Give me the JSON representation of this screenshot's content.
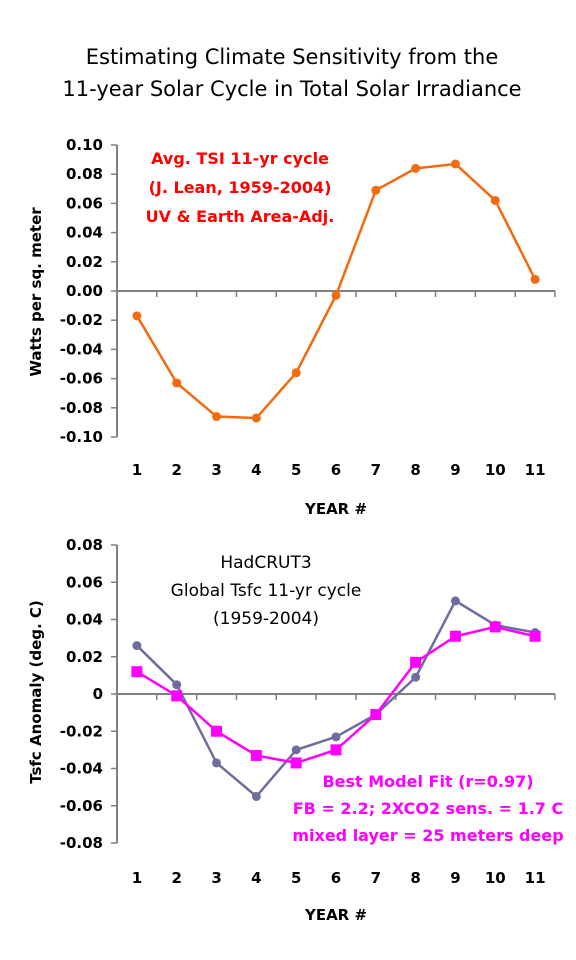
{
  "title": {
    "line1": "Estimating Climate Sensitivity from the",
    "line2": "11-year Solar Cycle in Total Solar Irradiance"
  },
  "chart_data": [
    {
      "type": "line",
      "id": "tsi",
      "xlabel": "YEAR #",
      "ylabel": "Watts per sq. meter",
      "x": [
        1,
        2,
        3,
        4,
        5,
        6,
        7,
        8,
        9,
        10,
        11
      ],
      "xlim": [
        0.5,
        11.5
      ],
      "ylim": [
        -0.1,
        0.1
      ],
      "yticks": [
        0.1,
        0.08,
        0.06,
        0.04,
        0.02,
        0.0,
        -0.02,
        -0.04,
        -0.06,
        -0.08,
        -0.1
      ],
      "ytick_labels": [
        "0.10",
        "0.08",
        "0.06",
        "0.04",
        "0.02",
        "0.00",
        "-0.02",
        "-0.04",
        "-0.06",
        "-0.08",
        "-0.10"
      ],
      "xtick_labels": [
        "1",
        "2",
        "3",
        "4",
        "5",
        "6",
        "7",
        "8",
        "9",
        "10",
        "11"
      ],
      "series": [
        {
          "values": [
            -0.017,
            -0.063,
            -0.086,
            -0.087,
            -0.056,
            -0.003,
            0.069,
            0.084,
            0.087,
            0.062,
            0.008
          ],
          "color": "#F26B0F",
          "marker": "circle"
        }
      ],
      "annotation": {
        "lines": [
          "Avg. TSI 11-yr cycle",
          "(J. Lean, 1959-2004)",
          "UV & Earth Area-Adj."
        ],
        "color": "#FF0000"
      }
    },
    {
      "type": "line",
      "id": "tsfc",
      "xlabel": "YEAR #",
      "ylabel": "Tsfc Anomaly (deg. C)",
      "x": [
        1,
        2,
        3,
        4,
        5,
        6,
        7,
        8,
        9,
        10,
        11
      ],
      "xlim": [
        0.5,
        11.5
      ],
      "ylim": [
        -0.08,
        0.08
      ],
      "yticks": [
        0.08,
        0.06,
        0.04,
        0.02,
        0,
        -0.02,
        -0.04,
        -0.06,
        -0.08
      ],
      "ytick_labels": [
        "0.08",
        "0.06",
        "0.04",
        "0.02",
        "0",
        "-0.02",
        "-0.04",
        "-0.06",
        "-0.08"
      ],
      "xtick_labels": [
        "1",
        "2",
        "3",
        "4",
        "5",
        "6",
        "7",
        "8",
        "9",
        "10",
        "11"
      ],
      "series": [
        {
          "values": [
            0.026,
            0.005,
            -0.037,
            -0.055,
            -0.03,
            -0.023,
            -0.011,
            0.009,
            0.05,
            0.037,
            0.033
          ],
          "color": "#6E6E9E",
          "marker": "circle"
        },
        {
          "values": [
            0.012,
            -0.001,
            -0.02,
            -0.033,
            -0.037,
            -0.03,
            -0.011,
            0.017,
            0.031,
            0.036,
            0.031
          ],
          "color": "#FF00FF",
          "marker": "square"
        }
      ],
      "annotation": {
        "lines": [
          "HadCRUT3",
          "Global Tsfc 11-yr cycle",
          "(1959-2004)"
        ],
        "color": "#000000"
      },
      "annotation2": {
        "lines": [
          "Best Model Fit (r=0.97)",
          "FB = 2.2; 2XCO2 sens. = 1.7 C",
          "mixed layer = 25 meters deep"
        ],
        "color": "#FF00FF"
      }
    }
  ]
}
